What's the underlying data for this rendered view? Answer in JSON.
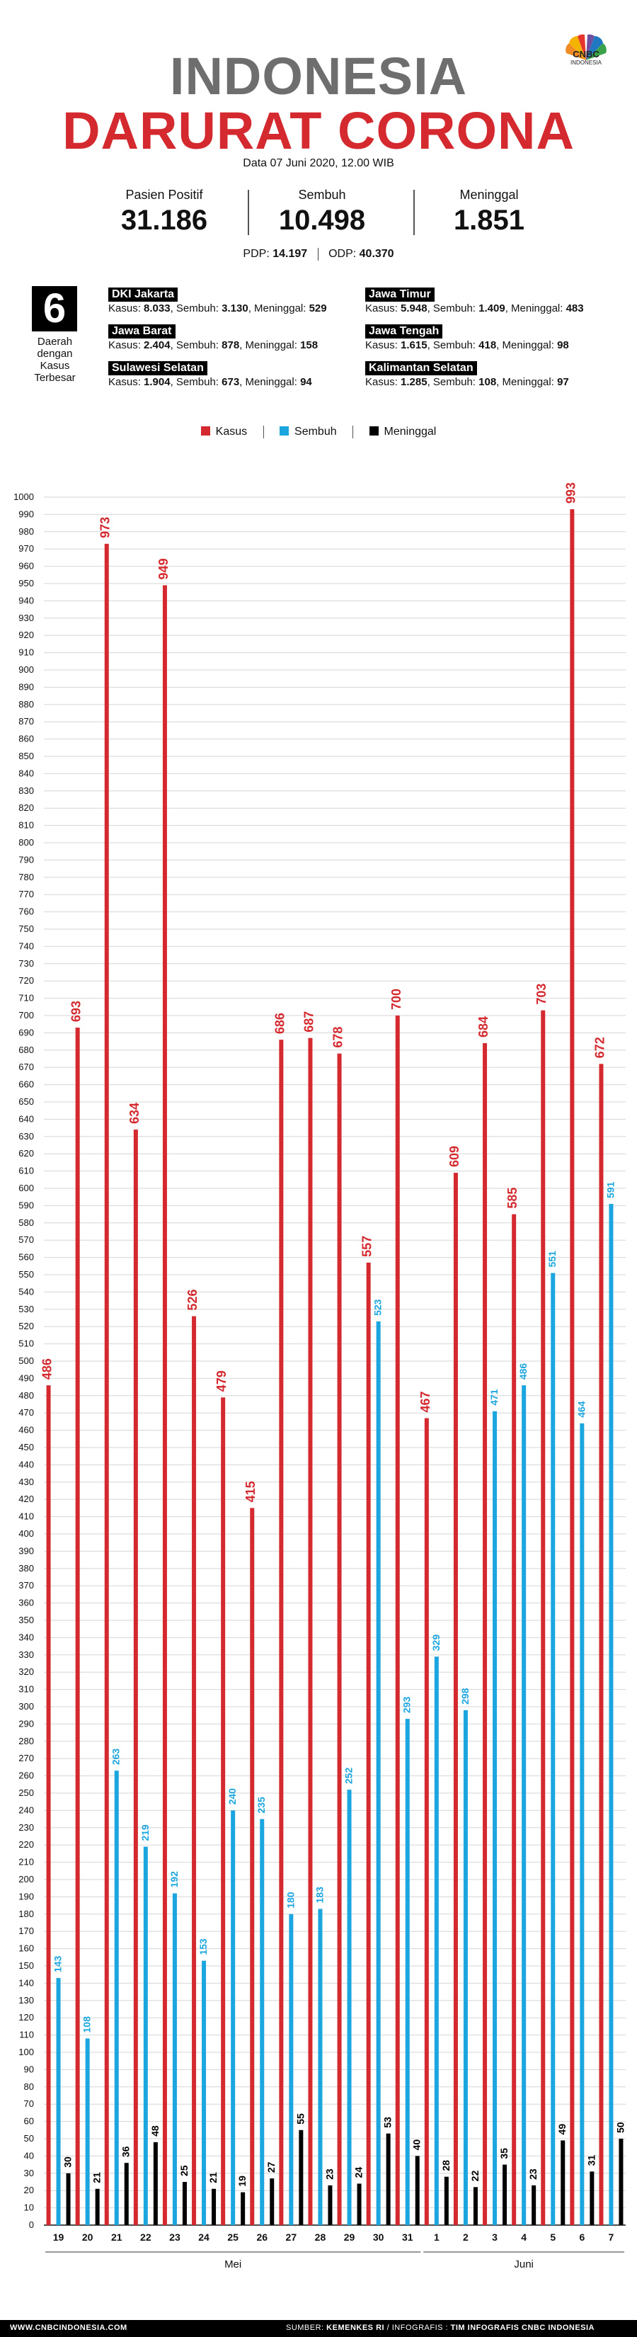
{
  "header": {
    "title_line1": "INDONESIA",
    "title_line2": "DARURAT CORONA",
    "date_line": "Data 07 Juni 2020, 12.00 WIB",
    "logo_text": "CNBC",
    "logo_sub": "INDONESIA"
  },
  "stats": [
    {
      "label": "Pasien Positif",
      "value": "31.186"
    },
    {
      "label": "Sembuh",
      "value": "10.498"
    },
    {
      "label": "Meninggal",
      "value": "1.851"
    }
  ],
  "pdp": {
    "label": "PDP:",
    "value": "14.197"
  },
  "odp": {
    "label": "ODP:",
    "value": "40.370"
  },
  "regions_header": {
    "number": "6",
    "label": "Daerah dengan Kasus Terbesar"
  },
  "regions": [
    {
      "name": "DKI Jakarta",
      "kasus": "8.033",
      "sembuh": "3.130",
      "meninggal": "529"
    },
    {
      "name": "Jawa Timur",
      "kasus": "5.948",
      "sembuh": "1.409",
      "meninggal": "483"
    },
    {
      "name": "Jawa Barat",
      "kasus": "2.404",
      "sembuh": "878",
      "meninggal": "158"
    },
    {
      "name": "Jawa Tengah",
      "kasus": "1.615",
      "sembuh": "418",
      "meninggal": "98"
    },
    {
      "name": "Sulawesi Selatan",
      "kasus": "1.904",
      "sembuh": "673",
      "meninggal": "94"
    },
    {
      "name": "Kalimantan Selatan",
      "kasus": "1.285",
      "sembuh": "108",
      "meninggal": "97"
    }
  ],
  "region_labels": {
    "kasus": "Kasus:",
    "sembuh": "Sembuh:",
    "meninggal": "Meninggal:"
  },
  "legend": [
    {
      "label": "Kasus",
      "color": "#d42a2f"
    },
    {
      "label": "Sembuh",
      "color": "#1ca6df"
    },
    {
      "label": "Meninggal",
      "color": "#000000"
    }
  ],
  "chart_data": {
    "type": "bar",
    "title": "",
    "xlabel": "",
    "ylabel": "",
    "ylim": [
      0,
      1000
    ],
    "ytick_step": 10,
    "categories": [
      "19",
      "20",
      "21",
      "22",
      "23",
      "24",
      "25",
      "26",
      "27",
      "28",
      "29",
      "30",
      "31",
      "1",
      "2",
      "3",
      "4",
      "5",
      "6",
      "7"
    ],
    "month_groups": [
      {
        "label": "Mei",
        "categories": [
          "19",
          "20",
          "21",
          "22",
          "23",
          "24",
          "25",
          "26",
          "27",
          "28",
          "29",
          "30",
          "31"
        ]
      },
      {
        "label": "Juni",
        "categories": [
          "1",
          "2",
          "3",
          "4",
          "5",
          "6",
          "7"
        ]
      }
    ],
    "series": [
      {
        "name": "Kasus",
        "color": "#d42a2f",
        "values": [
          486,
          693,
          973,
          634,
          949,
          526,
          479,
          415,
          686,
          687,
          678,
          557,
          700,
          467,
          609,
          684,
          585,
          703,
          993,
          672
        ]
      },
      {
        "name": "Sembuh",
        "color": "#1ca6df",
        "values": [
          143,
          108,
          263,
          219,
          192,
          153,
          240,
          235,
          180,
          183,
          252,
          523,
          293,
          329,
          298,
          471,
          486,
          551,
          464,
          591
        ]
      },
      {
        "name": "Meninggal",
        "color": "#000000",
        "values": [
          30,
          21,
          36,
          48,
          25,
          21,
          19,
          27,
          55,
          23,
          24,
          53,
          40,
          28,
          22,
          35,
          23,
          49,
          31,
          50
        ]
      }
    ]
  },
  "footer": {
    "website": "WWW.CNBCINDONESIA.COM",
    "source_label": "SUMBER:",
    "source_value": "KEMENKES RI",
    "infografis_label": "/ INFOGRAFIS :",
    "infografis_value": "TIM INFOGRAFIS CNBC INDONESIA"
  }
}
